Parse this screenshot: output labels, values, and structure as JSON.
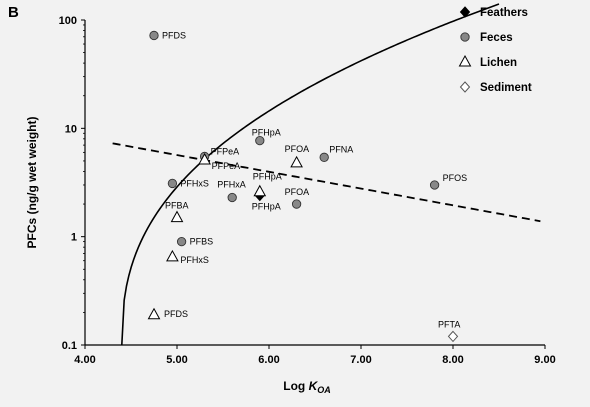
{
  "panel_label": "B",
  "chart_data": {
    "type": "scatter",
    "xlabel_prefix": "Log ",
    "xlabel_var": "K",
    "xlabel_sub": "OA",
    "ylabel": "PFCs (ng/g wet weight)",
    "xlim": [
      4.0,
      9.0
    ],
    "ylim": [
      0.1,
      100
    ],
    "yscale": "log",
    "xticks": [
      "4.00",
      "5.00",
      "6.00",
      "7.00",
      "8.00",
      "9.00"
    ],
    "yticks": [
      "0.1",
      "1",
      "10",
      "100"
    ],
    "grid": false,
    "legend_position": "top-right",
    "series": [
      {
        "name": "Feathers",
        "marker": "filled-diamond",
        "color": "#000000",
        "points": [
          {
            "x": 5.9,
            "y": 2.4,
            "label": "PFHpA"
          }
        ]
      },
      {
        "name": "Feces",
        "marker": "filled-circle",
        "color": "#808080",
        "points": [
          {
            "x": 4.75,
            "y": 72,
            "label": "PFDS"
          },
          {
            "x": 5.9,
            "y": 7.7,
            "label": "PFHpA"
          },
          {
            "x": 5.3,
            "y": 5.5,
            "label": "PFPeA"
          },
          {
            "x": 6.6,
            "y": 5.4,
            "label": "PFNA"
          },
          {
            "x": 4.95,
            "y": 3.1,
            "label": "PFHxS"
          },
          {
            "x": 7.8,
            "y": 3.0,
            "label": "PFOS"
          },
          {
            "x": 5.6,
            "y": 2.3,
            "label": "PFHxA"
          },
          {
            "x": 6.3,
            "y": 2.0,
            "label": "PFOA"
          },
          {
            "x": 5.05,
            "y": 0.9,
            "label": "PFBS"
          }
        ]
      },
      {
        "name": "Lichen",
        "marker": "open-triangle",
        "color": "#000000",
        "points": [
          {
            "x": 5.3,
            "y": 5.1,
            "label": "PFPeA"
          },
          {
            "x": 6.3,
            "y": 4.8,
            "label": "PFOA"
          },
          {
            "x": 5.9,
            "y": 2.6,
            "label": "PFHpA"
          },
          {
            "x": 5.0,
            "y": 1.5,
            "label": "PFBA"
          },
          {
            "x": 4.95,
            "y": 0.65,
            "label": "PFHxS"
          },
          {
            "x": 4.75,
            "y": 0.19,
            "label": "PFDS"
          }
        ]
      },
      {
        "name": "Sediment",
        "marker": "open-diamond",
        "color": "#000000",
        "points": [
          {
            "x": 8.0,
            "y": 0.12,
            "label": "PFTA"
          }
        ]
      }
    ],
    "fit_lines": [
      {
        "style": "solid",
        "x_range": [
          4.4,
          8.5
        ]
      },
      {
        "style": "dashed",
        "x_range": [
          4.3,
          8.95
        ]
      }
    ]
  }
}
